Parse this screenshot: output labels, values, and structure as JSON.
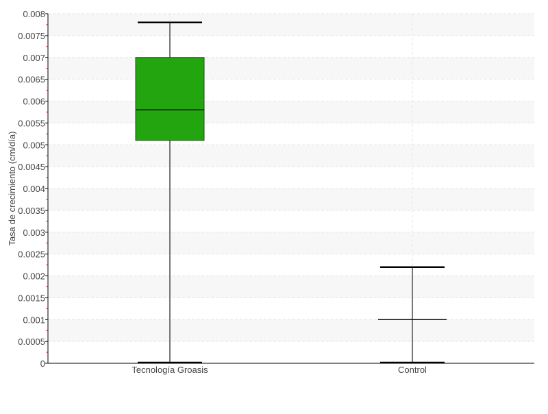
{
  "chart_data": {
    "type": "boxplot",
    "title": "",
    "xlabel": "",
    "ylabel": "Tasa de crecimiento (cm/día)",
    "ylim": [
      0,
      0.008
    ],
    "yticks": [
      "0",
      "0.0005",
      "0.001",
      "0.0015",
      "0.002",
      "0.0025",
      "0.003",
      "0.0035",
      "0.004",
      "0.0045",
      "0.005",
      "0.0055",
      "0.006",
      "0.0065",
      "0.007",
      "0.0075",
      "0.008"
    ],
    "grid": true,
    "categories": [
      "Tecnología Groasis",
      "Control"
    ],
    "boxes": [
      {
        "category": "Tecnología Groasis",
        "min": 0,
        "q1": 0.0051,
        "median": 0.0058,
        "q3": 0.007,
        "max": 0.0078,
        "color": "#22a50f"
      },
      {
        "category": "Control",
        "min": 0,
        "q1": 0.001,
        "median": 0.001,
        "q3": 0.001,
        "max": 0.0022,
        "color": "#22a50f"
      }
    ]
  }
}
